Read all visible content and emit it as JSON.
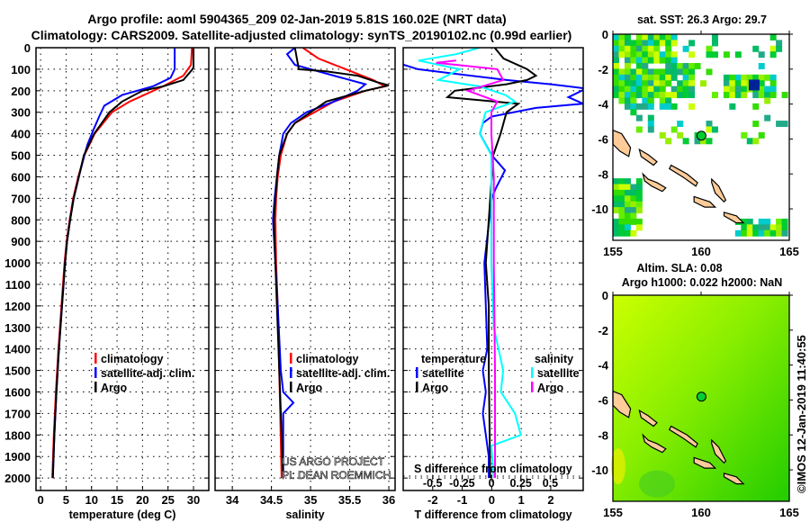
{
  "title": {
    "line1": "Argo profile: aoml 5904365_209 02-Jan-2019 5.81S 160.02E (NRT data)",
    "line2": "Climatology: CARS2009. Satellite-adjusted climatology: synTS_20190102.nc (0.99d earlier)"
  },
  "credit": {
    "line1": "US ARGO PROJECT",
    "line2": "PI: DEAN ROEMMICH"
  },
  "watermark": "©IMOS 12-Jan-2019 11:40:55",
  "colors": {
    "argo": "#000000",
    "climatology": "#ff0000",
    "satellite": "#0000ff",
    "sal_satellite": "#00ffff",
    "sal_argo": "#ff00ff"
  },
  "chart_data": [
    {
      "type": "line",
      "id": "temperature",
      "xlabel": "temperature (deg C)",
      "ylabel": "depth",
      "xticks": [
        0,
        5,
        10,
        15,
        20,
        25,
        30
      ],
      "xlim": [
        -0.9,
        33
      ],
      "yticks": [
        0,
        100,
        200,
        300,
        400,
        500,
        600,
        700,
        800,
        900,
        1000,
        1100,
        1200,
        1300,
        1400,
        1500,
        1600,
        1700,
        1800,
        1900,
        2000
      ],
      "ylim": [
        2058,
        0
      ],
      "grid": true,
      "legend": {
        "placement": "bottom-center",
        "entries": [
          "climatology",
          "satellite-adj. clim.",
          "Argo"
        ]
      },
      "series": [
        {
          "name": "climatology",
          "color": "#ff0000",
          "depth": [
            0,
            80,
            130,
            180,
            250,
            300,
            400,
            500,
            600,
            700,
            800,
            900,
            1000,
            1200,
            1400,
            1600,
            1800,
            2000
          ],
          "values": [
            29.7,
            29.5,
            28,
            24,
            17.5,
            14,
            10.6,
            8.6,
            7.4,
            6.4,
            5.7,
            5.1,
            4.7,
            4.1,
            3.5,
            3.0,
            2.6,
            2.3
          ]
        },
        {
          "name": "satellite-adj. clim.",
          "color": "#0000ff",
          "depth": [
            0,
            100,
            140,
            180,
            220,
            270,
            320,
            380,
            450,
            500,
            600,
            700,
            800,
            900,
            1000,
            1200,
            1400,
            1600,
            1800,
            2000
          ],
          "values": [
            26.3,
            26.3,
            25.5,
            22,
            16,
            12.5,
            11.5,
            10.4,
            9.2,
            8.6,
            7.5,
            6.5,
            5.8,
            5.2,
            4.8,
            4.2,
            3.6,
            3.1,
            2.7,
            2.4
          ]
        },
        {
          "name": "Argo",
          "color": "#000000",
          "depth": [
            0,
            90,
            100,
            150,
            180,
            200,
            250,
            300,
            350,
            400,
            500,
            600,
            700,
            800,
            900,
            1000,
            1200,
            1400,
            1600,
            1800,
            2000
          ],
          "values": [
            30,
            30,
            29.8,
            28,
            24,
            20,
            16,
            13.5,
            12,
            10.5,
            8.5,
            7.5,
            6.5,
            5.8,
            5.2,
            4.8,
            4.2,
            3.6,
            3.1,
            2.7,
            2.4
          ]
        }
      ]
    },
    {
      "type": "line",
      "id": "salinity",
      "xlabel": "salinity",
      "xticks": [
        34,
        34.5,
        35,
        35.5,
        36
      ],
      "xlim": [
        33.78,
        36.08
      ],
      "ylim": [
        2058,
        0
      ],
      "grid": true,
      "legend": {
        "placement": "bottom-center",
        "entries": [
          "climatology",
          "satellite-adj. clim.",
          "Argo"
        ]
      },
      "series": [
        {
          "name": "climatology",
          "color": "#ff0000",
          "depth": [
            0,
            50,
            100,
            150,
            180,
            200,
            250,
            300,
            350,
            400,
            500,
            600,
            700,
            800,
            1000,
            1200,
            1500,
            2000
          ],
          "values": [
            34.9,
            35.1,
            35.45,
            35.8,
            35.95,
            35.7,
            35.3,
            35.05,
            34.8,
            34.7,
            34.62,
            34.58,
            34.56,
            34.55,
            34.56,
            34.58,
            34.6,
            34.63
          ]
        },
        {
          "name": "satellite-adj. clim.",
          "color": "#0000ff",
          "depth": [
            0,
            30,
            80,
            130,
            170,
            200,
            250,
            300,
            350,
            400,
            500,
            600,
            700,
            800,
            1000,
            1200,
            1500,
            1600,
            1650,
            1700,
            2000
          ],
          "values": [
            34.8,
            34.7,
            34.8,
            35.3,
            35.7,
            35.6,
            35.3,
            34.95,
            34.75,
            34.65,
            34.6,
            34.57,
            34.54,
            34.52,
            34.55,
            34.58,
            34.62,
            34.65,
            34.78,
            34.65,
            34.65
          ]
        },
        {
          "name": "Argo",
          "color": "#000000",
          "depth": [
            0,
            100,
            110,
            130,
            160,
            175,
            200,
            250,
            300,
            350,
            400,
            500,
            600,
            700,
            800,
            1000,
            1200,
            1500,
            2000
          ],
          "values": [
            34.8,
            34.85,
            35.2,
            35.6,
            35.85,
            36.0,
            35.7,
            35.2,
            35.0,
            34.8,
            34.7,
            34.6,
            34.57,
            34.55,
            34.53,
            34.55,
            34.57,
            34.6,
            34.65
          ]
        }
      ]
    },
    {
      "type": "line",
      "id": "difference",
      "xlabel": "T difference from climatology",
      "xlabel2": "S difference from climatology",
      "xticks": [
        -2,
        -1,
        0,
        1,
        2
      ],
      "xticks2": [
        "-0.5",
        "-0.25",
        "0",
        "0.25",
        "0.5"
      ],
      "xlim": [
        -3.0,
        3.1
      ],
      "xlim2": [
        -0.75,
        0.78
      ],
      "ylim": [
        2058,
        0
      ],
      "grid": true,
      "legend": {
        "temperature_title": "temperature",
        "salinity_title": "salinity",
        "entries": [
          "satellite",
          "Argo"
        ]
      },
      "series": [
        {
          "name": "temperature satellite",
          "color": "#0000ff",
          "axis": "T",
          "depth": [
            0,
            70,
            100,
            150,
            170,
            190,
            230,
            260,
            280,
            320,
            350,
            400,
            450,
            500,
            570,
            650,
            700,
            1000,
            1400,
            1500,
            1600,
            1700,
            1800,
            1900,
            2000
          ],
          "values": [
            -3.2,
            -3.2,
            -2.5,
            0.5,
            2,
            3.2,
            2.6,
            3.1,
            1.5,
            0,
            -0.3,
            -0.4,
            -0.2,
            0,
            0.45,
            0.15,
            0,
            -0.25,
            -0.15,
            -0.3,
            -0.2,
            -0.3,
            -0.2,
            -0.1,
            -0.1
          ]
        },
        {
          "name": "temperature Argo",
          "color": "#000000",
          "axis": "T",
          "depth": [
            0,
            50,
            100,
            130,
            150,
            170,
            200,
            230,
            260,
            300,
            400,
            500,
            600,
            800,
            1000,
            1200,
            1500,
            2000
          ],
          "values": [
            0.1,
            0.4,
            1.2,
            1.5,
            1.2,
            0.5,
            -1.25,
            -1.5,
            0.9,
            0.5,
            0.3,
            0.05,
            0,
            -0.1,
            -0.2,
            -0.1,
            -0.1,
            -0.05
          ]
        },
        {
          "name": "salinity satellite",
          "color": "#00ffff",
          "axis": "S",
          "depth": [
            0,
            30,
            60,
            100,
            150,
            180,
            220,
            250,
            300,
            400,
            500,
            1000,
            1300,
            1500,
            1600,
            1700,
            1800,
            1850,
            2000
          ],
          "values": [
            -0.1,
            -0.3,
            -0.62,
            -0.27,
            -0.45,
            -0.1,
            0.12,
            0.2,
            -0.05,
            -0.1,
            0,
            0,
            0.02,
            0.1,
            0.08,
            0.2,
            0.25,
            0,
            0.02
          ]
        },
        {
          "name": "salinity Argo",
          "color": "#ff00ff",
          "axis": "S",
          "depth": [
            60,
            70,
            100,
            150,
            200,
            250,
            300,
            400,
            600,
            1000,
            1500,
            2000
          ],
          "values": [
            -0.3,
            -0.47,
            0.05,
            0.1,
            -0.2,
            0.05,
            0,
            0,
            0.02,
            0.02,
            0.03,
            0.03
          ]
        }
      ]
    }
  ],
  "maps": [
    {
      "title": "sat. SST: 26.3 Argo: 29.7",
      "lon_ticks": [
        "155",
        "160",
        "165"
      ],
      "lat_ticks": [
        "0",
        "-2",
        "-4",
        "-6",
        "-8",
        "-10"
      ]
    },
    {
      "title": "Altim. SLA: 0.08",
      "subtitle": "Argo h1000: 0.022 h2000: NaN",
      "lon_ticks": [
        "155",
        "160",
        "165"
      ],
      "lat_ticks": [
        "0",
        "-2",
        "-4",
        "-6",
        "-8",
        "-10"
      ]
    }
  ]
}
